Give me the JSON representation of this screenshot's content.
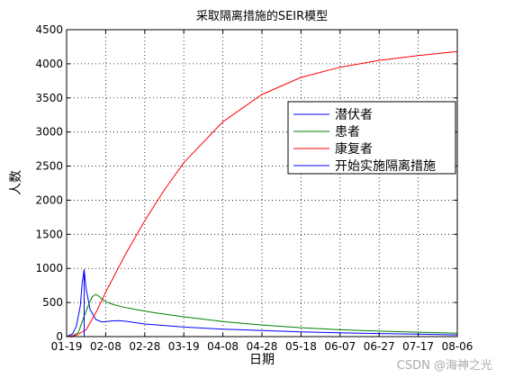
{
  "chart_data": {
    "type": "line",
    "title": "采取隔离措施的SEIR模型",
    "xlabel": "日期",
    "ylabel": "人数",
    "categories": [
      "01-19",
      "02-08",
      "02-28",
      "03-19",
      "04-08",
      "04-28",
      "05-18",
      "06-07",
      "06-27",
      "07-17",
      "08-06"
    ],
    "ylim": [
      0,
      4500
    ],
    "yticks": [
      0,
      500,
      1000,
      1500,
      2000,
      2500,
      3000,
      3500,
      4000,
      4500
    ],
    "grid": true,
    "legend_position": "upper-right",
    "x_unit": "days since 01-19",
    "series": [
      {
        "name": "潜伏者",
        "color": "#0000ff",
        "x": [
          0,
          3,
          5,
          7,
          8,
          9,
          10,
          12,
          15,
          18,
          22,
          26,
          30,
          40,
          60,
          80,
          100,
          120,
          140,
          160,
          180,
          200
        ],
        "values": [
          0,
          40,
          150,
          450,
          800,
          980,
          700,
          400,
          250,
          215,
          225,
          235,
          225,
          185,
          140,
          110,
          90,
          70,
          55,
          45,
          35,
          25
        ]
      },
      {
        "name": "患者",
        "color": "#008000",
        "x": [
          0,
          3,
          6,
          9,
          11,
          13,
          15,
          17,
          19,
          21,
          24,
          28,
          35,
          45,
          60,
          80,
          100,
          120,
          140,
          160,
          180,
          200
        ],
        "values": [
          0,
          10,
          60,
          300,
          450,
          580,
          620,
          580,
          530,
          500,
          470,
          440,
          400,
          350,
          290,
          220,
          170,
          130,
          100,
          80,
          65,
          50
        ]
      },
      {
        "name": "康复者",
        "color": "#ff0000",
        "x": [
          0,
          5,
          10,
          15,
          20,
          30,
          40,
          50,
          60,
          80,
          100,
          120,
          140,
          160,
          180,
          200
        ],
        "values": [
          0,
          20,
          100,
          350,
          650,
          1200,
          1700,
          2150,
          2550,
          3150,
          3550,
          3800,
          3950,
          4050,
          4120,
          4180
        ]
      },
      {
        "name": "开始实施隔离措施",
        "color": "#0000ff",
        "x": [
          9,
          9
        ],
        "values": [
          0,
          990
        ]
      }
    ]
  },
  "watermark": "CSDN @海神之光"
}
